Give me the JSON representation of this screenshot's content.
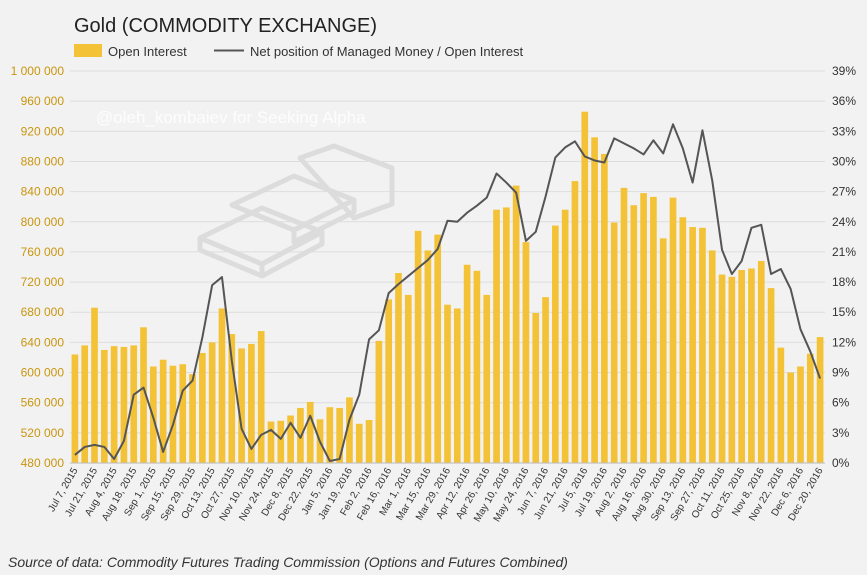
{
  "chart_data": {
    "type": "bar+line",
    "title": "Gold (COMMODITY EXCHANGE)",
    "legend": {
      "placement": "top-left",
      "bar_label": "Open Interest",
      "line_label": "Net position of Managed Money / Open Interest"
    },
    "watermark": "@oleh_kombaiev for Seeking Alpha",
    "source": "Source of data: Commodity Futures Trading Commission (Options and Futures Combined)",
    "colors": {
      "bar": "#f4c236",
      "line": "#555555",
      "left_ticks": "#c9960f",
      "background": "#f2f2f2"
    },
    "y_left": {
      "min": 480000,
      "max": 1000000,
      "ticks": [
        480000,
        520000,
        560000,
        600000,
        640000,
        680000,
        720000,
        760000,
        800000,
        840000,
        880000,
        920000,
        960000,
        1000000
      ],
      "tick_labels": [
        "480 000",
        "520 000",
        "560 000",
        "600 000",
        "640 000",
        "680 000",
        "720 000",
        "760 000",
        "800 000",
        "840 000",
        "880 000",
        "920 000",
        "960 000",
        "1 000 000"
      ]
    },
    "y_right": {
      "min": 0,
      "max": 39,
      "ticks": [
        0,
        3,
        6,
        9,
        12,
        15,
        18,
        21,
        24,
        27,
        30,
        33,
        36,
        39
      ],
      "tick_labels": [
        "0%",
        "3%",
        "6%",
        "9%",
        "12%",
        "15%",
        "18%",
        "21%",
        "24%",
        "27%",
        "30%",
        "33%",
        "36%",
        "39%"
      ]
    },
    "x_tick_labels": [
      "Jul 7, 2015",
      "Jul 21, 2015",
      "Aug 4, 2015",
      "Aug 18, 2015",
      "Sep 1, 2015",
      "Sep 15, 2015",
      "Sep 29, 2015",
      "Oct 13, 2015",
      "Oct 27, 2015",
      "Nov 10, 2015",
      "Nov 24, 2015",
      "Dec 8, 2015",
      "Dec 22, 2015",
      "Jan 5, 2016",
      "Jan 19, 2016",
      "Feb 2, 2016",
      "Feb 16, 2016",
      "Mar 1, 2016",
      "Mar 15, 2016",
      "Mar 29, 2016",
      "Apr 12, 2016",
      "Apr 26, 2016",
      "May 10, 2016",
      "May 24, 2016",
      "Jun 7, 2016",
      "Jun 21, 2016",
      "Jul 5, 2016",
      "Jul 19, 2016",
      "Aug 2, 2016",
      "Aug 16, 2016",
      "Aug 30, 2016",
      "Sep 13, 2016",
      "Sep 27, 2016",
      "Oct 11, 2016",
      "Oct 25, 2016",
      "Nov 8, 2016",
      "Nov 22, 2016",
      "Dec 6, 2016",
      "Dec 20, 2016"
    ],
    "series": [
      {
        "name": "Open Interest",
        "type": "bar",
        "axis": "left",
        "values": [
          624000,
          636000,
          686000,
          630000,
          635000,
          634000,
          636000,
          660000,
          608000,
          617000,
          609000,
          611000,
          598000,
          626000,
          640000,
          685000,
          651000,
          632000,
          638000,
          655000,
          535000,
          536000,
          543000,
          553000,
          561000,
          538000,
          554000,
          553000,
          567000,
          532000,
          537000,
          642000,
          697000,
          732000,
          703000,
          788000,
          762000,
          783000,
          690000,
          685000,
          743000,
          735000,
          703000,
          816000,
          819000,
          848000,
          773000,
          679000,
          700000,
          795000,
          816000,
          854000,
          946000,
          912000,
          890000,
          799000,
          845000,
          822000,
          838000,
          833000,
          778000,
          832000,
          806000,
          793000,
          792000,
          762000,
          730000,
          727000,
          736000,
          738000,
          748000,
          712000,
          633000,
          600000,
          608000,
          625000,
          647000
        ]
      },
      {
        "name": "Net position of Managed Money / Open Interest",
        "type": "line",
        "axis": "right",
        "values": [
          0.8,
          1.6,
          1.8,
          1.6,
          0.4,
          2.2,
          6.8,
          7.5,
          4.5,
          1.1,
          3.8,
          7.2,
          8.2,
          12.5,
          17.7,
          18.5,
          10.2,
          3.4,
          1.4,
          2.8,
          3.3,
          2.4,
          4.0,
          2.5,
          4.7,
          2.1,
          0.2,
          0.4,
          4.3,
          6.8,
          12.3,
          13.2,
          16.9,
          17.8,
          18.6,
          19.4,
          20.2,
          21.3,
          24.1,
          24.0,
          24.9,
          25.6,
          26.4,
          28.8,
          27.9,
          26.9,
          22.1,
          23.0,
          26.5,
          30.4,
          31.4,
          32.0,
          30.5,
          30.1,
          29.9,
          32.3,
          31.8,
          31.3,
          30.7,
          32.1,
          30.8,
          33.7,
          31.3,
          27.9,
          33.1,
          28.1,
          21.2,
          18.8,
          20.1,
          23.4,
          23.7,
          18.8,
          19.3,
          17.3,
          13.3,
          11.1,
          8.4
        ]
      }
    ]
  }
}
